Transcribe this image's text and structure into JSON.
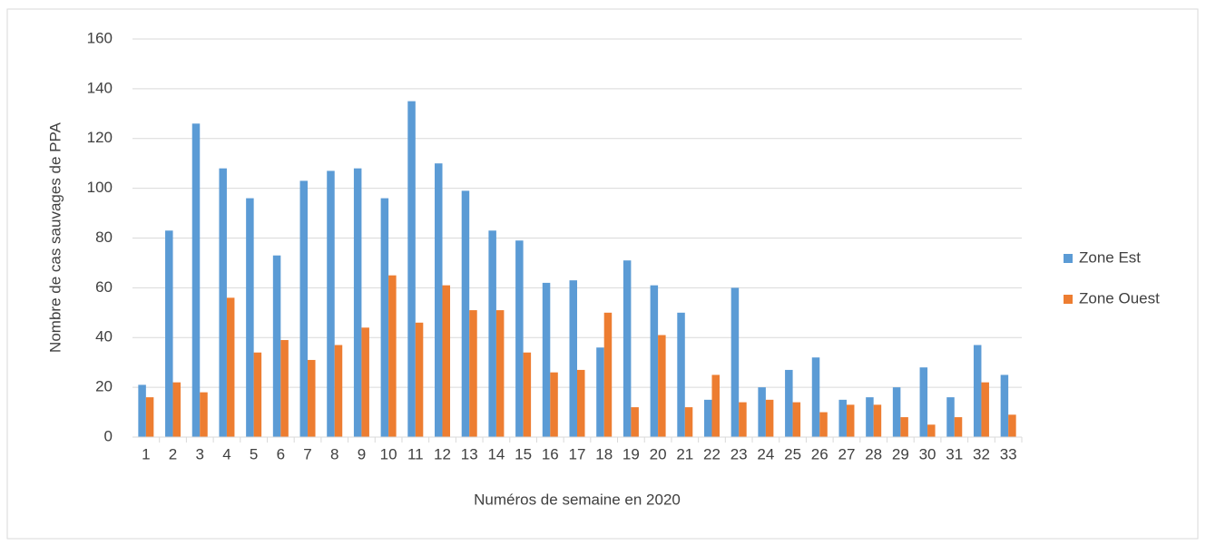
{
  "chart_data": {
    "type": "bar",
    "x_label": "Numéros de semaine en 2020",
    "y_label": "Nombre de cas sauvages de PPA",
    "categories": [
      "1",
      "2",
      "3",
      "4",
      "5",
      "6",
      "7",
      "8",
      "9",
      "10",
      "11",
      "12",
      "13",
      "14",
      "15",
      "16",
      "17",
      "18",
      "19",
      "20",
      "21",
      "22",
      "23",
      "24",
      "25",
      "26",
      "27",
      "28",
      "29",
      "30",
      "31",
      "32",
      "33"
    ],
    "series": [
      {
        "name": "Zone Est",
        "color": "#5b9bd5",
        "values": [
          21,
          83,
          126,
          108,
          96,
          73,
          103,
          107,
          108,
          96,
          135,
          110,
          99,
          83,
          79,
          62,
          63,
          36,
          71,
          61,
          50,
          15,
          60,
          20,
          27,
          32,
          15,
          16,
          20,
          28,
          16,
          37,
          25
        ]
      },
      {
        "name": "Zone Ouest",
        "color": "#ed7d31",
        "values": [
          16,
          22,
          18,
          56,
          34,
          39,
          31,
          37,
          44,
          65,
          46,
          61,
          51,
          51,
          34,
          26,
          27,
          50,
          12,
          41,
          12,
          25,
          14,
          15,
          14,
          10,
          13,
          13,
          8,
          5,
          8,
          22,
          9
        ]
      }
    ],
    "ylim": [
      0,
      160
    ],
    "yticks": [
      0,
      20,
      40,
      60,
      80,
      100,
      120,
      140,
      160
    ],
    "grid": true,
    "legend": "right"
  }
}
